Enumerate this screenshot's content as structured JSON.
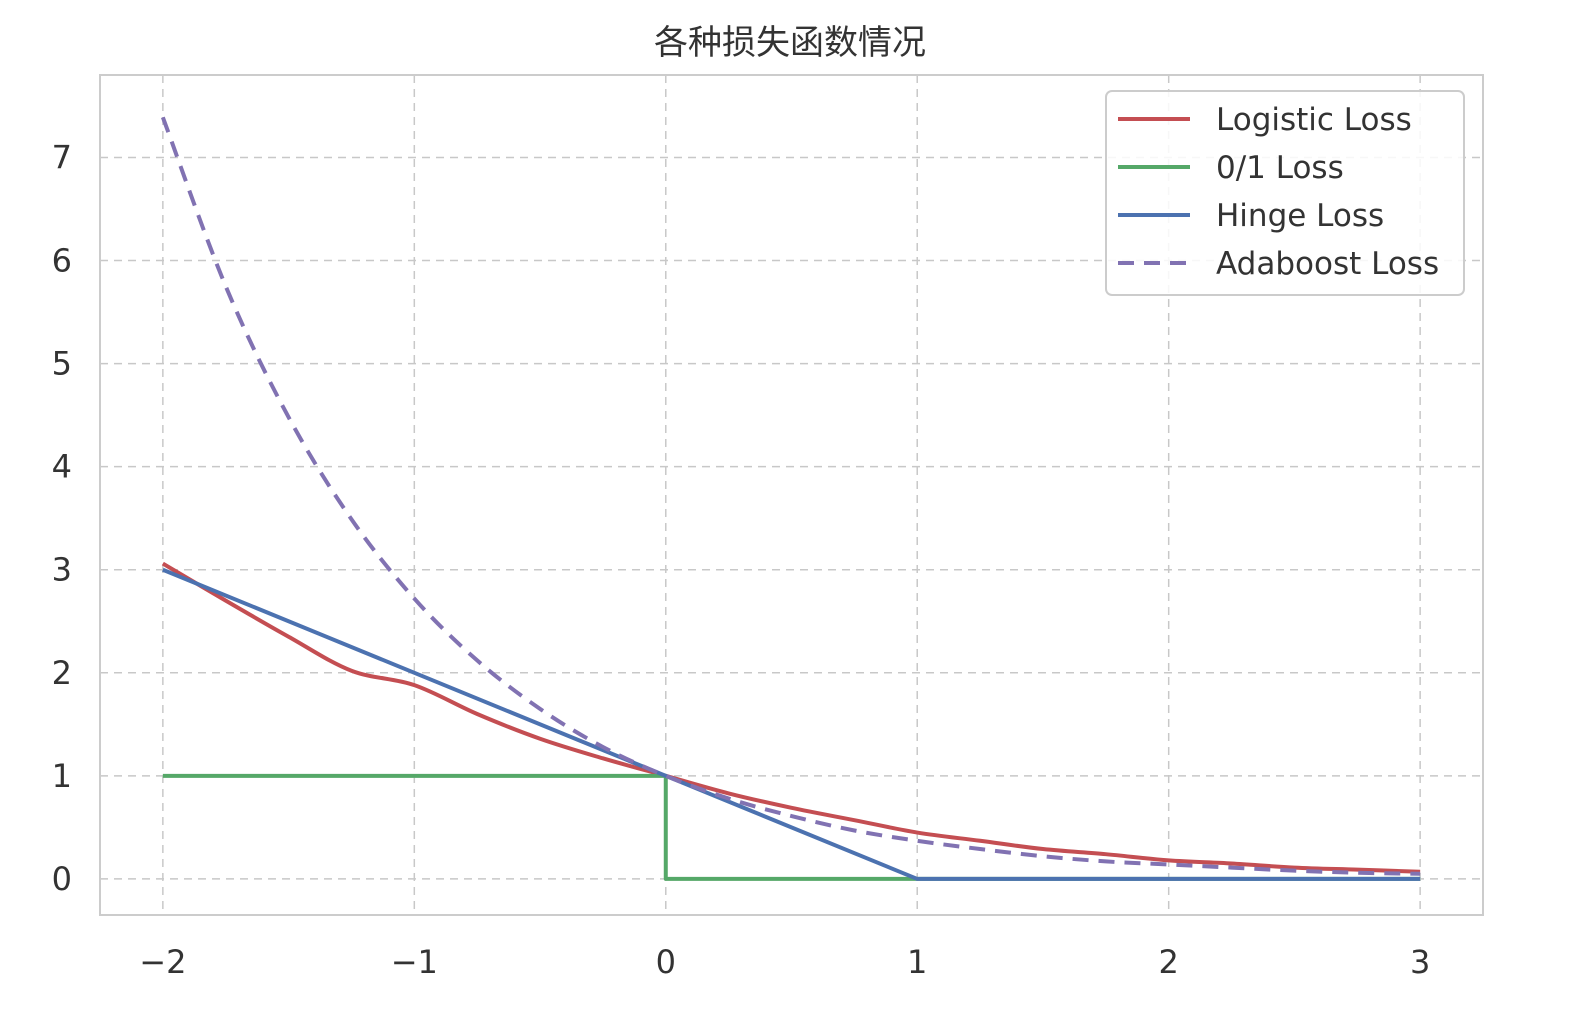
{
  "chart_data": {
    "type": "line",
    "title": "各种损失函数情况",
    "xlabel": "",
    "ylabel": "",
    "xlim": [
      -2.25,
      3.25
    ],
    "ylim": [
      -0.35,
      7.8
    ],
    "x_ticks": [
      -2,
      -1,
      0,
      1,
      2,
      3
    ],
    "x_tick_labels": [
      "−2",
      "−1",
      "0",
      "1",
      "2",
      "3"
    ],
    "y_ticks": [
      0,
      1,
      2,
      3,
      4,
      5,
      6,
      7
    ],
    "y_tick_labels": [
      "0",
      "1",
      "2",
      "3",
      "4",
      "5",
      "6",
      "7"
    ],
    "grid": true,
    "legend_position": "top-right",
    "series": [
      {
        "name": "Logistic Loss",
        "color": "#c44e52",
        "style": "solid",
        "x": [
          -2,
          -1.75,
          -1.5,
          -1.25,
          -1,
          -0.75,
          -0.5,
          -0.25,
          0,
          0.25,
          0.5,
          0.75,
          1,
          1.25,
          1.5,
          1.75,
          2,
          2.25,
          2.5,
          2.75,
          3
        ],
        "y": [
          3.06,
          2.7,
          2.35,
          2.02,
          1.88,
          1.6,
          1.36,
          1.17,
          1.0,
          0.83,
          0.69,
          0.57,
          0.45,
          0.37,
          0.29,
          0.24,
          0.18,
          0.15,
          0.11,
          0.09,
          0.07
        ]
      },
      {
        "name": "0/1 Loss",
        "color": "#55a868",
        "style": "solid",
        "x": [
          -2,
          0,
          0,
          3
        ],
        "y": [
          1,
          1,
          0,
          0
        ]
      },
      {
        "name": "Hinge Loss",
        "color": "#4c72b0",
        "style": "solid",
        "x": [
          -2,
          1,
          3
        ],
        "y": [
          3,
          0,
          0
        ]
      },
      {
        "name": "Adaboost Loss",
        "color": "#8172b2",
        "style": "dashed",
        "x": [
          -2,
          -1.75,
          -1.5,
          -1.25,
          -1,
          -0.75,
          -0.5,
          -0.25,
          0,
          0.25,
          0.5,
          0.75,
          1,
          1.25,
          1.5,
          1.75,
          2,
          2.25,
          2.5,
          2.75,
          3
        ],
        "y": [
          7.39,
          5.75,
          4.48,
          3.49,
          2.72,
          2.12,
          1.65,
          1.28,
          1.0,
          0.78,
          0.61,
          0.47,
          0.37,
          0.29,
          0.22,
          0.17,
          0.14,
          0.11,
          0.08,
          0.06,
          0.05
        ]
      }
    ]
  }
}
